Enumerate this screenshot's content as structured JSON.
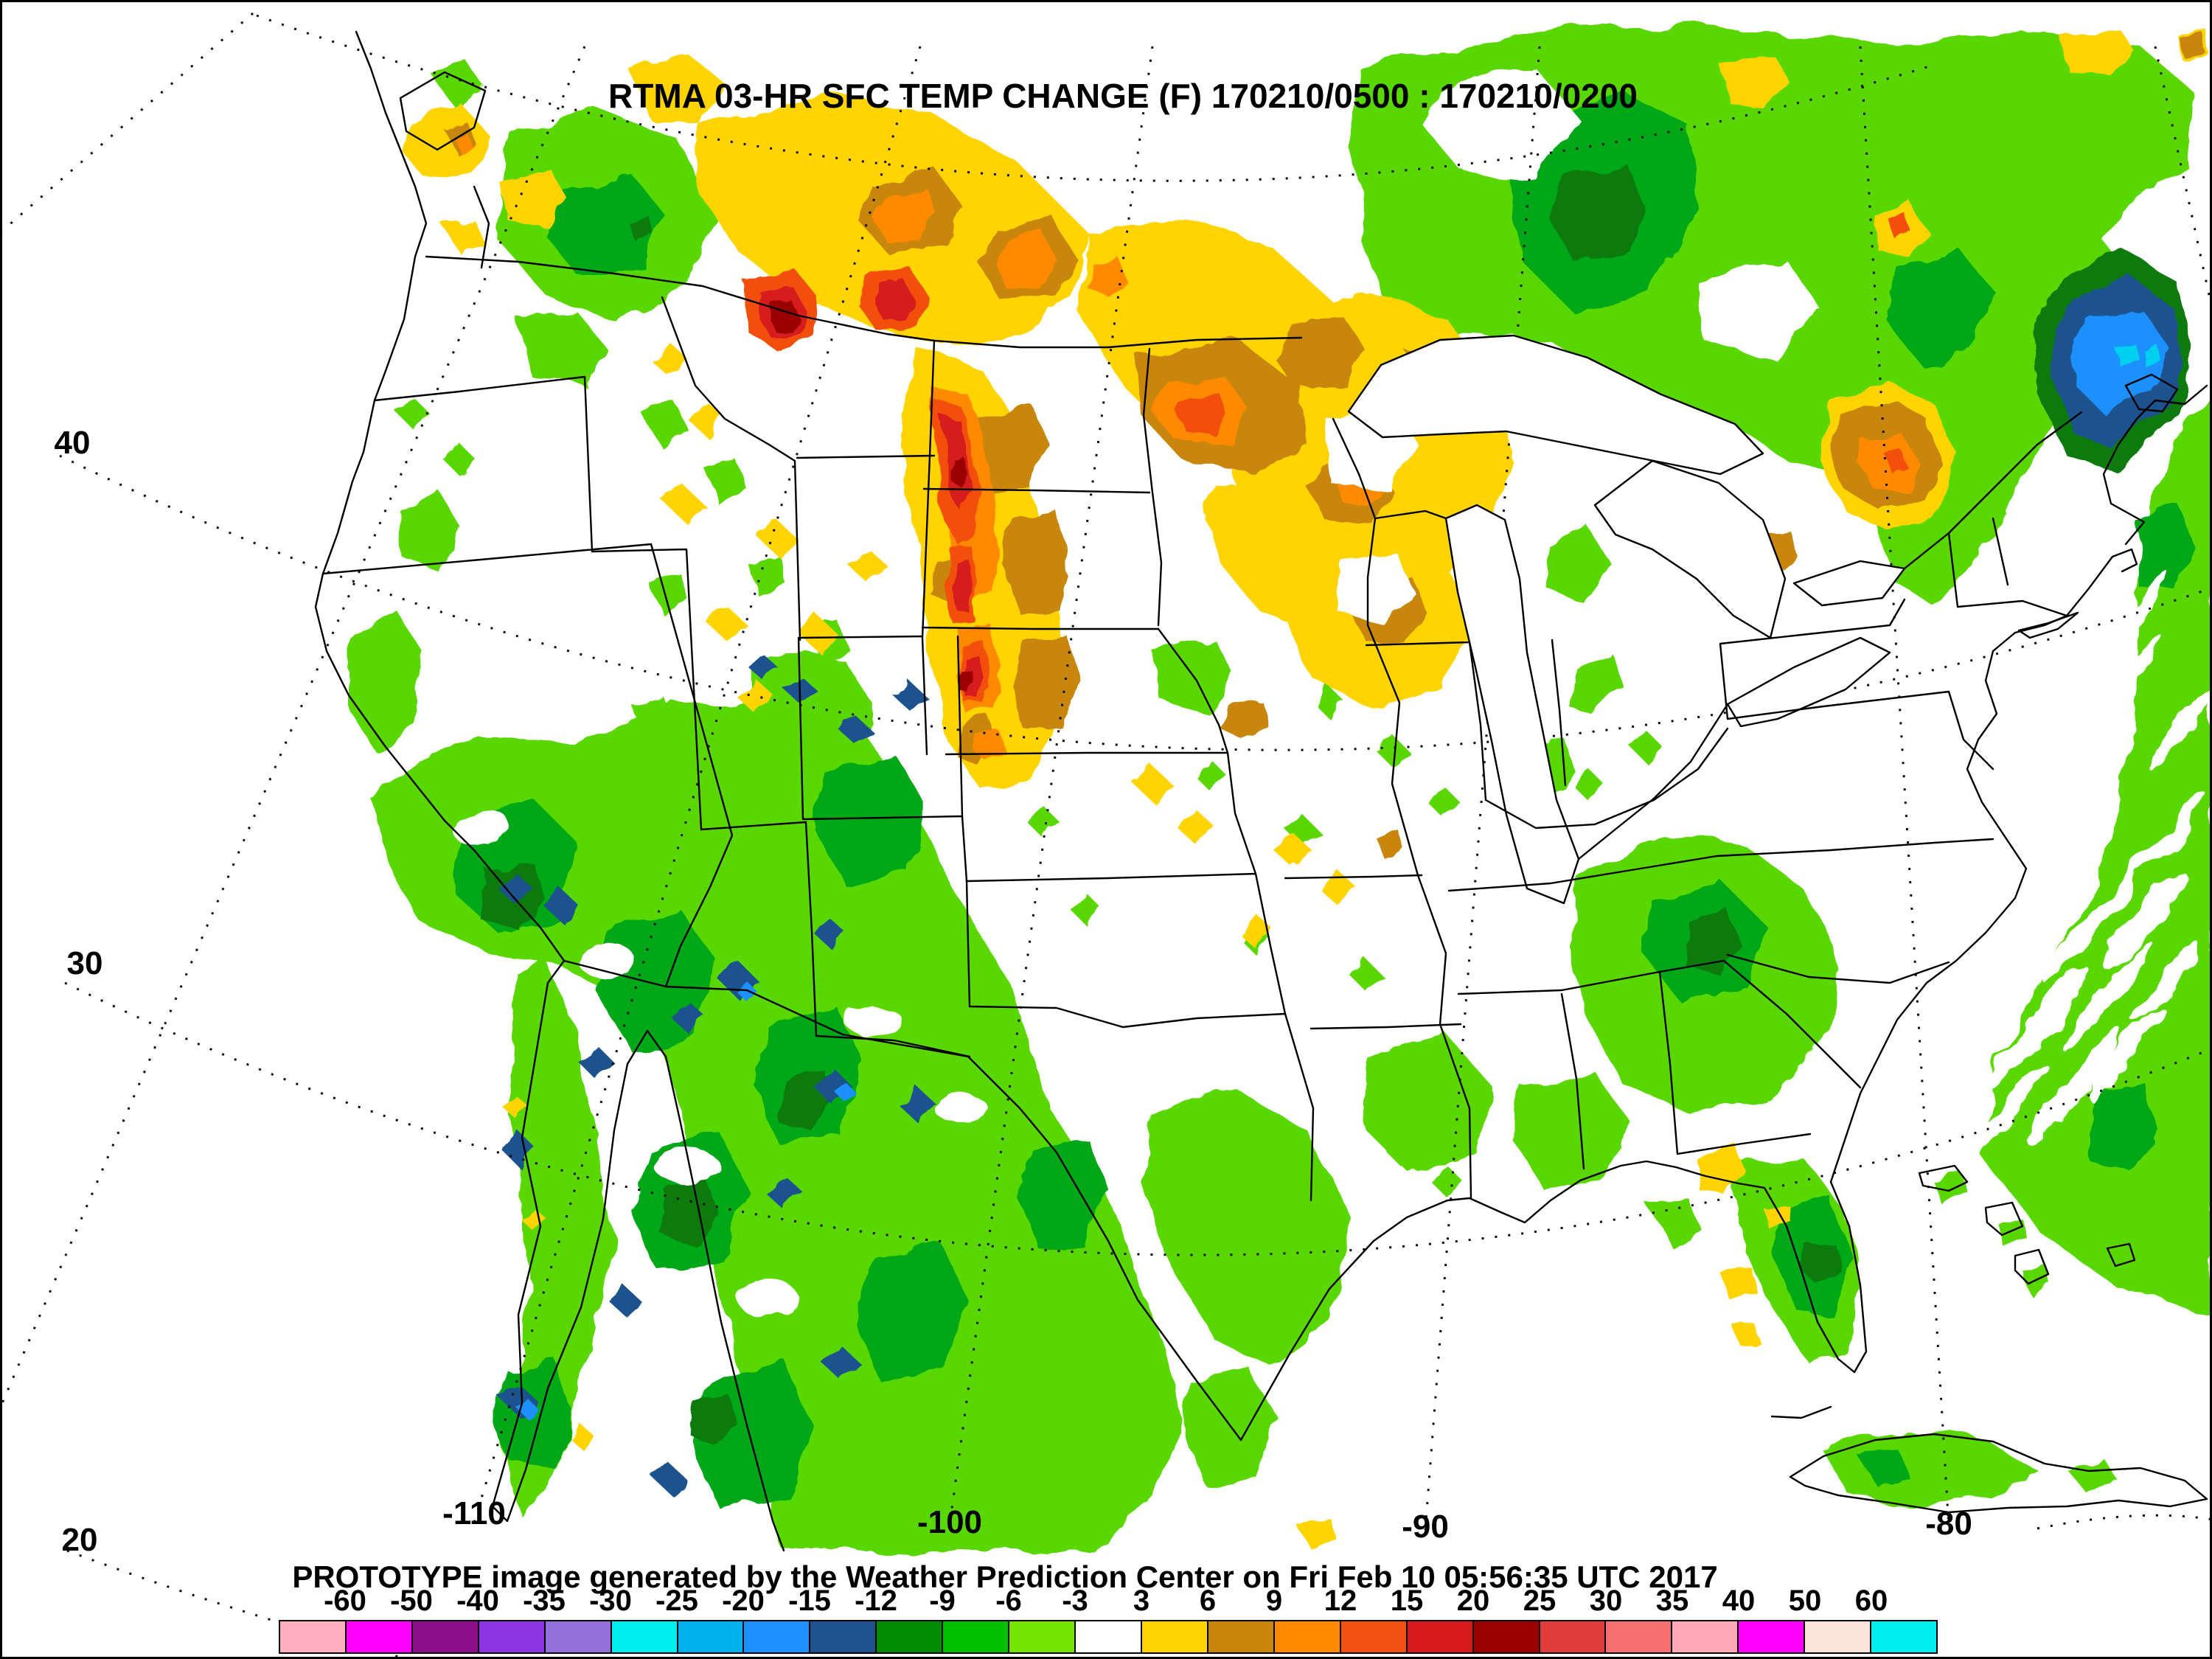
{
  "title": "RTMA 03-HR SFC TEMP CHANGE (F) 170210/0500 : 170210/0200",
  "footer": "PROTOTYPE image generated by the Weather Prediction Center on Fri Feb 10 05:56:35 UTC 2017",
  "map": {
    "lat_labels": [
      "40",
      "30",
      "20"
    ],
    "lon_labels": [
      "-110",
      "-100",
      "-90",
      "-80"
    ]
  },
  "colorbar": {
    "tick_labels": [
      "-60",
      "-50",
      "-40",
      "-35",
      "-30",
      "-25",
      "-20",
      "-15",
      "-12",
      "-9",
      "-6",
      "-3",
      "3",
      "6",
      "9",
      "12",
      "15",
      "20",
      "25",
      "30",
      "35",
      "40",
      "50",
      "60"
    ],
    "colors": [
      "#FFAEBE",
      "#FF00FF",
      "#8B0E8B",
      "#8E35E3",
      "#9370DB",
      "#00EEEE",
      "#00B2EE",
      "#1E90FF",
      "#1D538F",
      "#008B00",
      "#00C000",
      "#72E400",
      "#FFFFFF",
      "#FFD400",
      "#C8860B",
      "#FF8A00",
      "#F2500F",
      "#D61A1A",
      "#9A0000",
      "#E23B3B",
      "#F57070",
      "#FFA9B8",
      "#FF00FF",
      "#FBE3DA",
      "#00EEEE"
    ]
  },
  "palette": {
    "light_green": "#59D805",
    "medium_green": "#00A714",
    "dark_green": "#0A7A0A",
    "navy": "#1D538F",
    "dodger": "#1E90FF",
    "cyan": "#00CFEF",
    "gold": "#FFD400",
    "goldenrod": "#C8860B",
    "orange": "#FF8A00",
    "orange_red": "#F2500F",
    "red": "#D61A1A",
    "dark_red": "#9A0000"
  }
}
